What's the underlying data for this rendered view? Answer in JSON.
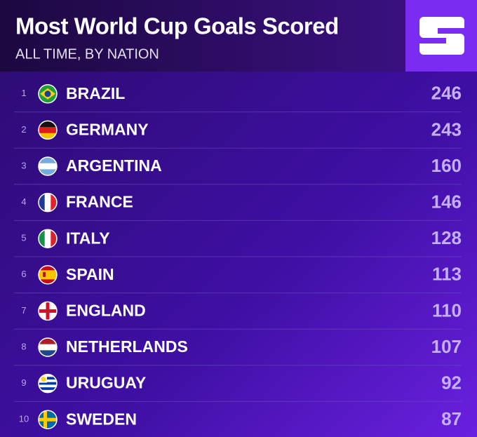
{
  "header": {
    "title": "Most World Cup Goals Scored",
    "subtitle": "ALL TIME, BY NATION"
  },
  "table": {
    "rows": [
      [
        1,
        "BRAZIL",
        246
      ],
      [
        2,
        "GERMANY",
        243
      ],
      [
        3,
        "ARGENTINA",
        160
      ],
      [
        4,
        "FRANCE",
        146
      ],
      [
        5,
        "ITALY",
        128
      ],
      [
        6,
        "SPAIN",
        113
      ],
      [
        7,
        "ENGLAND",
        110
      ],
      [
        8,
        "NETHERLANDS",
        107
      ],
      [
        9,
        "URUGUAY",
        92
      ],
      [
        10,
        "SWEDEN",
        87
      ]
    ]
  }
}
